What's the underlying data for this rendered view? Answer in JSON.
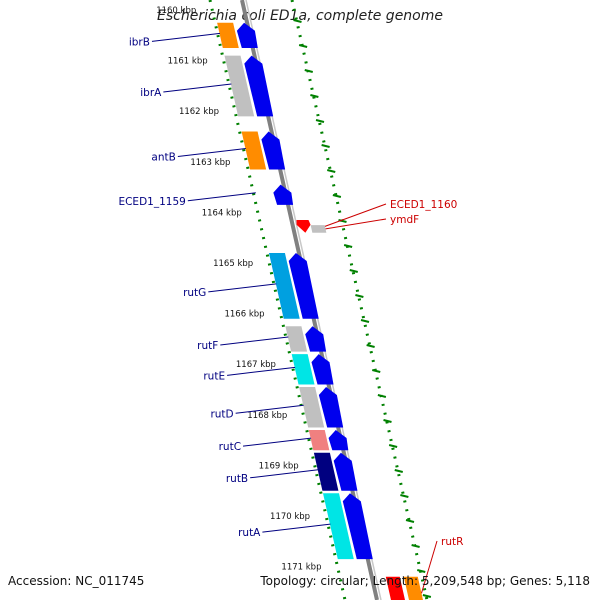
{
  "title": "Escherichia coli ED1a, complete genome",
  "accession_text": "Accession: NC_011745",
  "topology_text": "Topology: circular; Length: 5,209,548 bp; Genes: 5,118",
  "ticks": [
    {
      "kbp": 1160,
      "label": "1160 kbp"
    },
    {
      "kbp": 1161,
      "label": "1161 kbp"
    },
    {
      "kbp": 1162,
      "label": "1162 kbp"
    },
    {
      "kbp": 1163,
      "label": "1163 kbp"
    },
    {
      "kbp": 1164,
      "label": "1164 kbp"
    },
    {
      "kbp": 1165,
      "label": "1165 kbp"
    },
    {
      "kbp": 1166,
      "label": "1166 kbp"
    },
    {
      "kbp": 1167,
      "label": "1167 kbp"
    },
    {
      "kbp": 1168,
      "label": "1168 kbp"
    },
    {
      "kbp": 1169,
      "label": "1169 kbp"
    },
    {
      "kbp": 1170,
      "label": "1170 kbp"
    },
    {
      "kbp": 1171,
      "label": "1171 kbp"
    }
  ],
  "forward_genes": [
    {
      "label": "ibrB",
      "start_kbp": 1160.35,
      "end_kbp": 1160.85,
      "color": "#ff8c00",
      "cds": true
    },
    {
      "label": "ibrA",
      "start_kbp": 1161.0,
      "end_kbp": 1162.2,
      "color": "#c0c0c0",
      "cds": true
    },
    {
      "label": "antB",
      "start_kbp": 1162.5,
      "end_kbp": 1163.25,
      "color": "#ff8c00",
      "cds": true
    },
    {
      "label": "ECED1_1159",
      "start_kbp": 1163.55,
      "end_kbp": 1163.95,
      "color": "",
      "cds": true
    },
    {
      "label": "rutG",
      "start_kbp": 1164.9,
      "end_kbp": 1166.2,
      "color": "#00a0e0",
      "cds": true
    },
    {
      "label": "rutF",
      "start_kbp": 1166.35,
      "end_kbp": 1166.85,
      "color": "#c0c0c0",
      "cds": true
    },
    {
      "label": "rutE",
      "start_kbp": 1166.9,
      "end_kbp": 1167.5,
      "color": "#00e5e5",
      "cds": true
    },
    {
      "label": "rutD",
      "start_kbp": 1167.55,
      "end_kbp": 1168.35,
      "color": "#c0c0c0",
      "cds": true
    },
    {
      "label": "rutC",
      "start_kbp": 1168.4,
      "end_kbp": 1168.8,
      "color": "#f08080",
      "cds": true
    },
    {
      "label": "rutB",
      "start_kbp": 1168.85,
      "end_kbp": 1169.6,
      "color": "#000080",
      "cds": true
    },
    {
      "label": "rutA",
      "start_kbp": 1169.65,
      "end_kbp": 1170.95,
      "color": "#00e5e5",
      "cds": true
    }
  ],
  "reverse_genes": [
    {
      "label": "ECED1_1160",
      "start_kbp": 1164.25,
      "end_kbp": 1164.5,
      "color": "#ff0000",
      "cds": true
    },
    {
      "label": "ymdF",
      "start_kbp": 1164.35,
      "end_kbp": 1164.5,
      "color": "#c0c0c0",
      "cds": false
    },
    {
      "label": "rutR",
      "start_kbp": 1171.3,
      "end_kbp": 1171.95,
      "color": "#ff0000",
      "cds": true
    }
  ],
  "colors": {
    "cds": "#0000ee",
    "backbone": "#808080",
    "forward_label": "#000080",
    "reverse_label": "#cc0000",
    "tick_dots": "#008000",
    "orange": "#ff8c00"
  }
}
